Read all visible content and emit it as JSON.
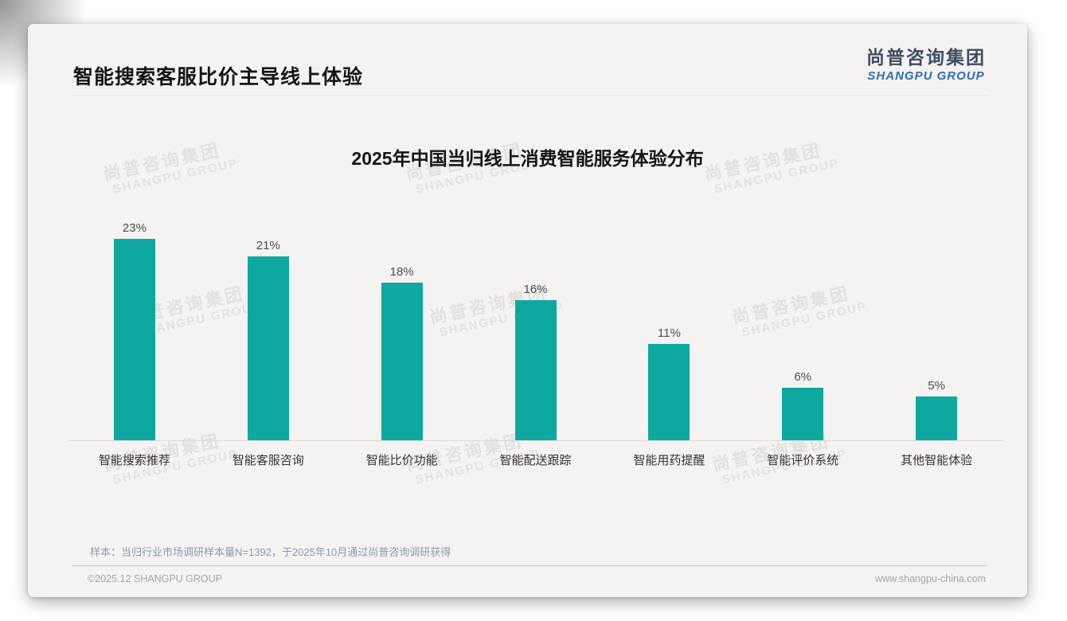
{
  "header": {
    "title": "智能搜索客服比价主导线上体验"
  },
  "logo": {
    "chinese": "尚普咨询集团",
    "english": "SHANGPU GROUP"
  },
  "chart_data": {
    "type": "bar",
    "title": "2025年中国当归线上消费智能服务体验分布",
    "categories": [
      "智能搜索推荐",
      "智能客服咨询",
      "智能比价功能",
      "智能配送跟踪",
      "智能用药提醒",
      "智能评价系统",
      "其他智能体验"
    ],
    "values": [
      23,
      21,
      18,
      16,
      11,
      6,
      5
    ],
    "unit": "%",
    "xlabel": "",
    "ylabel": "",
    "ylim": [
      0,
      25
    ],
    "grid": false,
    "legend_position": "none",
    "bar_color": "#0EA8A1",
    "axis_line_color": "#dcdbd9"
  },
  "watermark": {
    "line1": "尚普咨询集团",
    "line2": "SHANGPU GROUP"
  },
  "note": "样本：当归行业市场调研样本量N=1392，于2025年10月通过尚普咨询调研获得",
  "footer": {
    "left": "©2025.12 SHANGPU GROUP",
    "right": "www.shangpu-china.com"
  }
}
